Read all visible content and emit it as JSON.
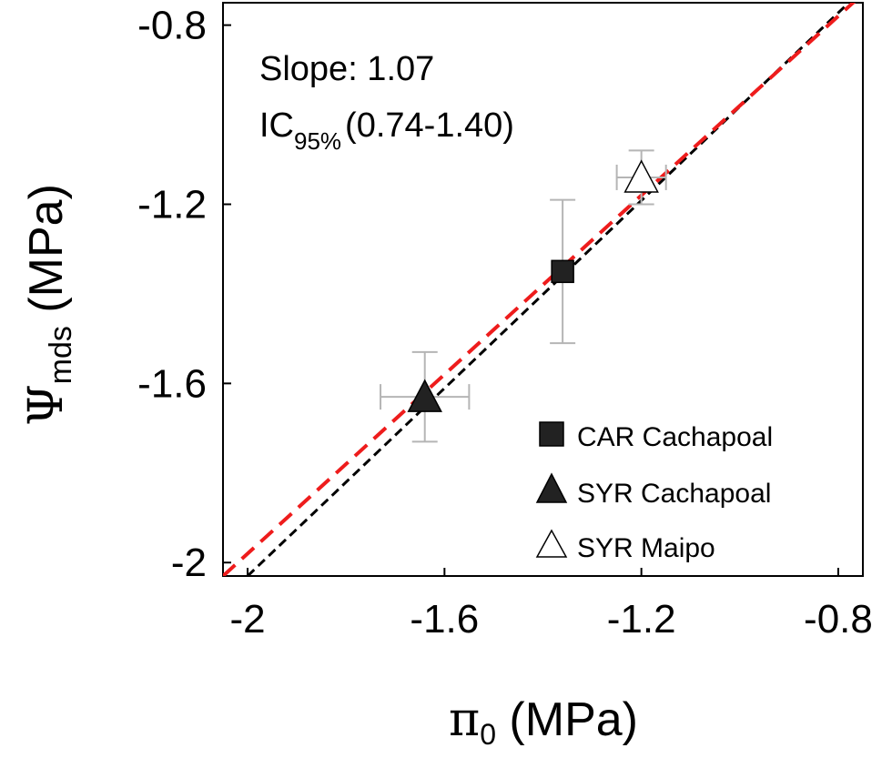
{
  "chart_data": {
    "type": "scatter",
    "xlabel": {
      "symbol": "π",
      "subscript": "0",
      "units": " (MPa)"
    },
    "ylabel": {
      "symbol": "Ψ",
      "subscript": "mds",
      "units": " (MPa)"
    },
    "xlim": [
      -2.05,
      -0.75
    ],
    "ylim": [
      -2.03,
      -0.75
    ],
    "x_ticks": [
      -2,
      -1.6,
      -1.2,
      -0.8
    ],
    "x_tick_labels": [
      "-2",
      "-1.6",
      "-1.2",
      "-0.8"
    ],
    "y_ticks": [
      -2,
      -1.6,
      -1.2,
      -0.8
    ],
    "y_tick_labels": [
      "-2",
      "-1.6",
      "-1.2",
      "-0.8"
    ],
    "grid": false,
    "annotation": {
      "slope": "Slope: 1.07",
      "ci_prefix": "IC",
      "ci_sub": "95%",
      "ci_range": "(0.74-1.40)"
    },
    "series": [
      {
        "name": "CAR Cachapoal",
        "marker": "square",
        "fill": "#222222",
        "x": -1.36,
        "y": -1.35,
        "x_err": 0.0,
        "y_err": 0.16
      },
      {
        "name": "SYR Cachapoal",
        "marker": "triangle",
        "fill": "#222222",
        "x": -1.64,
        "y": -1.63,
        "x_err": 0.09,
        "y_err": 0.1
      },
      {
        "name": "SYR Maipo",
        "marker": "triangle",
        "fill": "#ffffff",
        "x": -1.2,
        "y": -1.14,
        "x_err": 0.05,
        "y_err": 0.06
      }
    ],
    "lines": [
      {
        "name": "fitted-line",
        "style": "dashed",
        "color": "#000000",
        "x": [
          -2.0,
          -0.75
        ],
        "y": [
          -2.03,
          -0.72
        ]
      },
      {
        "name": "one-to-one-line",
        "style": "dashed",
        "color": "#ee1c1c",
        "x": [
          -2.05,
          -0.75
        ],
        "y": [
          -2.03,
          -0.73
        ]
      }
    ],
    "legend_position": "bottom-right"
  }
}
